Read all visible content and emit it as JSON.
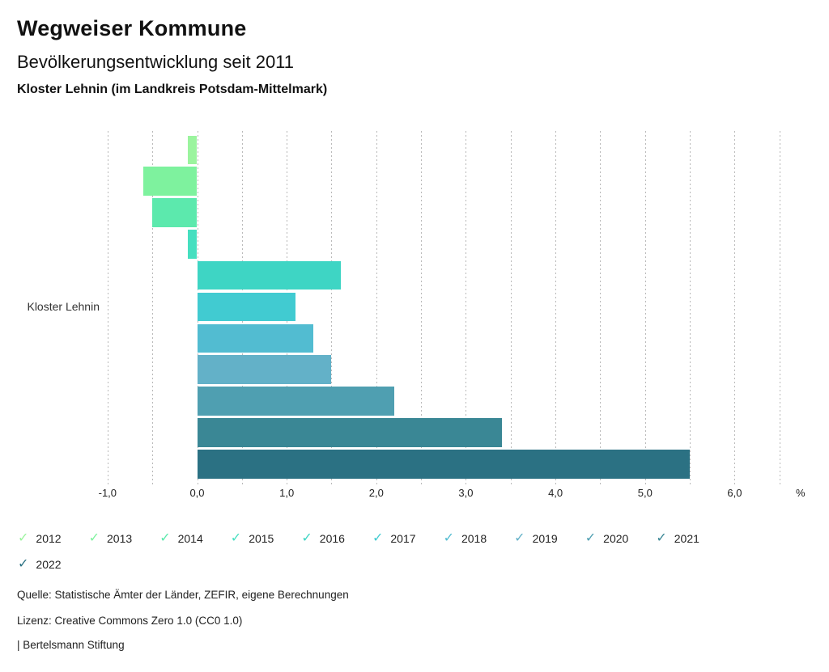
{
  "header": {
    "title": "Wegweiser Kommune",
    "subtitle": "Bevölkerungsentwicklung seit 2011",
    "region": "Kloster Lehnin (im Landkreis Potsdam-Mittelmark)"
  },
  "chart_data": {
    "type": "bar",
    "orientation": "horizontal",
    "title": "Bevölkerungsentwicklung seit 2011",
    "group_label": "Kloster Lehnin",
    "unit": "%",
    "series": [
      {
        "name": "2012",
        "value": -0.1,
        "color": "#9bf49e"
      },
      {
        "name": "2013",
        "value": -0.6,
        "color": "#7ef29e"
      },
      {
        "name": "2014",
        "value": -0.5,
        "color": "#5ce9ad"
      },
      {
        "name": "2015",
        "value": -0.1,
        "color": "#46dfc0"
      },
      {
        "name": "2016",
        "value": 1.6,
        "color": "#3ed5c4"
      },
      {
        "name": "2017",
        "value": 1.1,
        "color": "#41cbd1"
      },
      {
        "name": "2018",
        "value": 1.3,
        "color": "#52bcd1"
      },
      {
        "name": "2019",
        "value": 1.5,
        "color": "#63b1c8"
      },
      {
        "name": "2020",
        "value": 2.2,
        "color": "#4f9fb1"
      },
      {
        "name": "2021",
        "value": 3.4,
        "color": "#3a8795"
      },
      {
        "name": "2022",
        "value": 5.5,
        "color": "#2b7183"
      }
    ],
    "xlim": [
      -1.0,
      6.5
    ],
    "gridline_step": 0.5,
    "grid": true,
    "x_ticks": [
      {
        "value": -1,
        "label": "-1,0"
      },
      {
        "value": 0,
        "label": "0,0"
      },
      {
        "value": 1,
        "label": "1,0"
      },
      {
        "value": 2,
        "label": "2,0"
      },
      {
        "value": 3,
        "label": "3,0"
      },
      {
        "value": 4,
        "label": "4,0"
      },
      {
        "value": 5,
        "label": "5,0"
      },
      {
        "value": 6,
        "label": "6,0"
      }
    ],
    "legend_position": "bottom",
    "legend_check_glyph": "✓"
  },
  "footer": {
    "source": "Quelle: Statistische Ämter der Länder, ZEFIR, eigene Berechnungen",
    "license": "Lizenz: Creative Commons Zero 1.0 (CC0 1.0)",
    "attribution": "| Bertelsmann Stiftung"
  }
}
